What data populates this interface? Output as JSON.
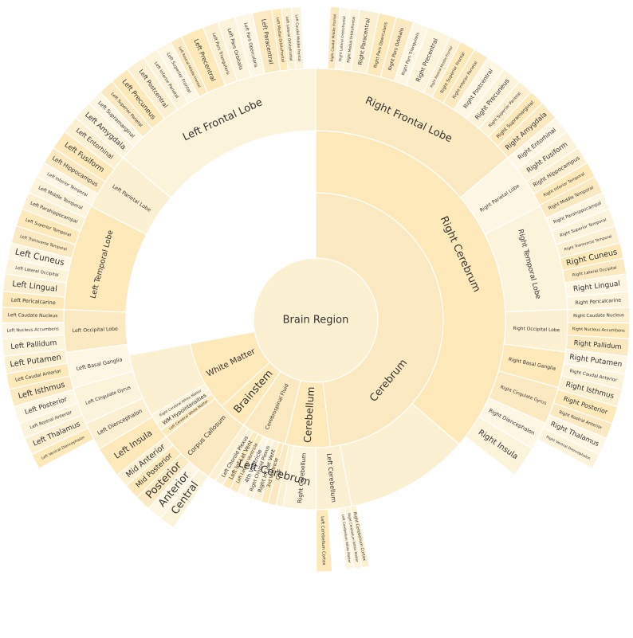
{
  "chart_data": {
    "type": "sunburst",
    "root": "Brain Region",
    "colors": [
      "#fbf0d2",
      "#fbeac1",
      "#fcf3db",
      "#fde9b9",
      "#fdf6e3"
    ],
    "nodes": [
      {
        "label": "Cerebrum",
        "level": 1,
        "start": 0,
        "end": 0.7205
      },
      {
        "label": "Left Cerebrum",
        "level": 2,
        "start": 0.3635,
        "end": 0.7205
      },
      {
        "label": "Right Cerebrum",
        "level": 2,
        "start": 0,
        "end": 0.3635
      },
      {
        "label": "Left Frontal Lobe",
        "level": 3,
        "start": 0.8617,
        "end": 1.0
      },
      {
        "label": "Left Parietal Lobe",
        "level": 3,
        "start": 0.8247,
        "end": 0.8617
      },
      {
        "label": "Left Temporal Lobe",
        "level": 3,
        "start": 0.7567,
        "end": 0.8247
      },
      {
        "label": "Left Occipital Lobe",
        "level": 3,
        "start": 0.7296,
        "end": 0.7567
      },
      {
        "label": "Left Basal Ganglia",
        "level": 3,
        "start": 0.7066,
        "end": 0.7296
      },
      {
        "label": "Left Cingulate Gyrus",
        "level": 3,
        "start": 0.6826,
        "end": 0.7066
      },
      {
        "label": "Left Diencephalon",
        "level": 3,
        "start": 0.6646,
        "end": 0.6826
      },
      {
        "label": "Left Insula",
        "level": 3,
        "start": 0.6446,
        "end": 0.6646
      },
      {
        "label": "Right Frontal Lobe",
        "level": 3,
        "start": 0,
        "end": 0.1381
      },
      {
        "label": "Right Parietal Lobe",
        "level": 3,
        "start": 0.1381,
        "end": 0.1751
      },
      {
        "label": "Right Temporal Lobe",
        "level": 3,
        "start": 0.1751,
        "end": 0.2431
      },
      {
        "label": "Right Occipital Lobe",
        "level": 3,
        "start": 0.2431,
        "end": 0.2702
      },
      {
        "label": "Right Basal Ganglia",
        "level": 3,
        "start": 0.2702,
        "end": 0.2932
      },
      {
        "label": "Right Cingulate Gyrus",
        "level": 3,
        "start": 0.2932,
        "end": 0.3172
      },
      {
        "label": "Right Diencephalon",
        "level": 3,
        "start": 0.3172,
        "end": 0.3352
      },
      {
        "label": "Right Insula",
        "level": 3,
        "start": 0.3352,
        "end": 0.3552
      },
      {
        "label": "White Matter",
        "level": 1,
        "start": 0.6316,
        "end": 0.7205
      },
      {
        "label": "Right Cerebral White Matter",
        "level": 2,
        "start": 0.6586,
        "end": 0.6666
      },
      {
        "label": "WM Hypointensities",
        "level": 2,
        "start": 0.6516,
        "end": 0.6586
      },
      {
        "label": "Left Cerebral White Matter",
        "level": 2,
        "start": 0.6446,
        "end": 0.6516
      },
      {
        "label": "Corpus Callosum",
        "level": 2,
        "start": 0.5956,
        "end": 0.6446
      },
      {
        "label": "Mid Anterior",
        "level": 3,
        "start": 0.6356,
        "end": 0.6446
      },
      {
        "label": "Mid Posterior",
        "level": 3,
        "start": 0.6256,
        "end": 0.6356
      },
      {
        "label": "Posterior",
        "level": 3,
        "start": 0.6156,
        "end": 0.6256
      },
      {
        "label": "Anterior",
        "level": 3,
        "start": 0.6056,
        "end": 0.6156
      },
      {
        "label": "Central",
        "level": 3,
        "start": 0.5956,
        "end": 0.6056
      },
      {
        "label": "Brainstem",
        "level": 1,
        "start": 0.5956,
        "end": 0.6316
      },
      {
        "label": "Cerebrospinal Fluid",
        "level": 1,
        "start": 0.5386,
        "end": 0.5956
      },
      {
        "label": "Left Choroid Plexus",
        "level": 2,
        "start": 0.5816,
        "end": 0.5886
      },
      {
        "label": "Left Inf Lat Vent",
        "level": 2,
        "start": 0.5746,
        "end": 0.5816
      },
      {
        "label": "Left Lateral Ventricle",
        "level": 2,
        "start": 0.5676,
        "end": 0.5746
      },
      {
        "label": "4th Ventricle",
        "level": 2,
        "start": 0.5606,
        "end": 0.5676
      },
      {
        "label": "Right Choroid Plexus",
        "level": 2,
        "start": 0.5536,
        "end": 0.5606
      },
      {
        "label": "Right Inf Lat Vent",
        "level": 2,
        "start": 0.5466,
        "end": 0.5536
      },
      {
        "label": "3rd Ventricle",
        "level": 2,
        "start": 0.5406,
        "end": 0.5466
      },
      {
        "label": "CSF",
        "level": 2,
        "start": 0.5336,
        "end": 0.5406
      },
      {
        "label": "Cerebellum",
        "level": 1,
        "start": 0.4816,
        "end": 0.5386
      },
      {
        "label": "Right Cerebellum",
        "level": 2,
        "start": 0.4996,
        "end": 0.5276
      },
      {
        "label": "Left Cerebellum",
        "level": 2,
        "start": 0.4696,
        "end": 0.4996
      },
      {
        "label": "Left Cerebellum White Matter",
        "level": 3,
        "start": 0.4756,
        "end": 0.4806
      },
      {
        "label": "Right Cerebellum White Matter",
        "level": 3,
        "start": 0.4706,
        "end": 0.4756
      },
      {
        "label": "Right Cerebellum Cortex",
        "level": 3,
        "start": 0.4656,
        "end": 0.4706
      },
      {
        "label": "Left Cerebellum Cortex",
        "level": 3,
        "start": 0.4896,
        "end": 0.4996
      },
      {
        "label": "Left Caudal Middle Frontal",
        "level": 4,
        "start": 0.9876,
        "end": 0.9926
      },
      {
        "label": "Left Lateral Orbitofrontal",
        "level": 4,
        "start": 0.9826,
        "end": 0.9876
      },
      {
        "label": "Left Medial Orbitofrontal",
        "level": 4,
        "start": 0.9776,
        "end": 0.9826
      },
      {
        "label": "Left Paracentral",
        "level": 4,
        "start": 0.9676,
        "end": 0.9776
      },
      {
        "label": "Left Pars Opercularis",
        "level": 4,
        "start": 0.9586,
        "end": 0.9676
      },
      {
        "label": "Left Pars Orbitalis",
        "level": 4,
        "start": 0.9496,
        "end": 0.9586
      },
      {
        "label": "Left Pars Triangularis",
        "level": 4,
        "start": 0.9416,
        "end": 0.9496
      },
      {
        "label": "Left Precentral",
        "level": 4,
        "start": 0.9296,
        "end": 0.9416
      },
      {
        "label": "Left Rostral Middle Frontal",
        "level": 4,
        "start": 0.9236,
        "end": 0.9296
      },
      {
        "label": "Left Superior Frontal",
        "level": 4,
        "start": 0.9156,
        "end": 0.9236
      },
      {
        "label": "Left Inferior Parietal",
        "level": 4,
        "start": 0.9076,
        "end": 0.9156
      },
      {
        "label": "Left Postcentral",
        "level": 4,
        "start": 0.8976,
        "end": 0.9076
      },
      {
        "label": "Left Precuneus",
        "level": 4,
        "start": 0.8876,
        "end": 0.8976
      },
      {
        "label": "Left Superior Parietal",
        "level": 4,
        "start": 0.8796,
        "end": 0.8876
      },
      {
        "label": "Left Supramarginal",
        "level": 4,
        "start": 0.8716,
        "end": 0.8796
      },
      {
        "label": "Left Amygdala",
        "level": 4,
        "start": 0.8616,
        "end": 0.8716
      },
      {
        "label": "Left Entorhinal",
        "level": 4,
        "start": 0.8526,
        "end": 0.8616
      },
      {
        "label": "Left Fusiform",
        "level": 4,
        "start": 0.8426,
        "end": 0.8526
      },
      {
        "label": "Left Hippocampus",
        "level": 4,
        "start": 0.8336,
        "end": 0.8426
      },
      {
        "label": "Left Inferior Temporal",
        "level": 4,
        "start": 0.8256,
        "end": 0.8336
      },
      {
        "label": "Left Middle Temporal",
        "level": 4,
        "start": 0.8166,
        "end": 0.8256
      },
      {
        "label": "Left Parahippocampal",
        "level": 4,
        "start": 0.8076,
        "end": 0.8166
      },
      {
        "label": "Left Superior Temporal",
        "level": 4,
        "start": 0.7986,
        "end": 0.8076
      },
      {
        "label": "Left Transverse Temporal",
        "level": 4,
        "start": 0.7896,
        "end": 0.7986
      },
      {
        "label": "Left Cuneus",
        "level": 4,
        "start": 0.7816,
        "end": 0.7896
      },
      {
        "label": "Left Lateral Occipital",
        "level": 4,
        "start": 0.7736,
        "end": 0.7816
      },
      {
        "label": "Left Lingual",
        "level": 4,
        "start": 0.7646,
        "end": 0.7736
      },
      {
        "label": "Left Pericalcarine",
        "level": 4,
        "start": 0.7566,
        "end": 0.7646
      },
      {
        "label": "Left Caudate Nucleus",
        "level": 4,
        "start": 0.7486,
        "end": 0.7566
      },
      {
        "label": "Left Nucleus Accumbens",
        "level": 4,
        "start": 0.7406,
        "end": 0.7486
      },
      {
        "label": "Left Pallidum",
        "level": 4,
        "start": 0.7316,
        "end": 0.7406
      },
      {
        "label": "Left Putamen",
        "level": 4,
        "start": 0.7226,
        "end": 0.7316
      },
      {
        "label": "Left Caudal Anterior",
        "level": 4,
        "start": 0.7146,
        "end": 0.7226
      },
      {
        "label": "Left Isthmus",
        "level": 4,
        "start": 0.7056,
        "end": 0.7146
      },
      {
        "label": "Left Posterior",
        "level": 4,
        "start": 0.6966,
        "end": 0.7056
      },
      {
        "label": "Left Rostral Anterior",
        "level": 4,
        "start": 0.6886,
        "end": 0.6966
      },
      {
        "label": "Left Thalamus",
        "level": 4,
        "start": 0.6796,
        "end": 0.6886
      },
      {
        "label": "Left Ventral Diencephalon",
        "level": 4,
        "start": 0.6716,
        "end": 0.6796
      },
      {
        "label": "Right Caudal Middle Frontal",
        "level": 4,
        "start": 0.0074,
        "end": 0.0124
      },
      {
        "label": "Right Lateral Orbitofrontal",
        "level": 4,
        "start": 0.0124,
        "end": 0.0174
      },
      {
        "label": "Right Medial Orbitofrontal",
        "level": 4,
        "start": 0.0174,
        "end": 0.0224
      },
      {
        "label": "Right Paracentral",
        "level": 4,
        "start": 0.0224,
        "end": 0.0324
      },
      {
        "label": "Right Pars Opercularis",
        "level": 4,
        "start": 0.0324,
        "end": 0.0414
      },
      {
        "label": "Right Pars Orbitalis",
        "level": 4,
        "start": 0.0414,
        "end": 0.0504
      },
      {
        "label": "Right Pars Triangularis",
        "level": 4,
        "start": 0.0504,
        "end": 0.0584
      },
      {
        "label": "Right Precentral",
        "level": 4,
        "start": 0.0584,
        "end": 0.0704
      },
      {
        "label": "Right Rostral Middle Frontal",
        "level": 4,
        "start": 0.0704,
        "end": 0.0764
      },
      {
        "label": "Right Superior Frontal",
        "level": 4,
        "start": 0.0764,
        "end": 0.0844
      },
      {
        "label": "Right Inferior Parietal",
        "level": 4,
        "start": 0.0844,
        "end": 0.0924
      },
      {
        "label": "Right Postcentral",
        "level": 4,
        "start": 0.0924,
        "end": 0.1024
      },
      {
        "label": "Right Precuneus",
        "level": 4,
        "start": 0.1024,
        "end": 0.1124
      },
      {
        "label": "Right Superior Parietal",
        "level": 4,
        "start": 0.1124,
        "end": 0.1204
      },
      {
        "label": "Right Supramarginal",
        "level": 4,
        "start": 0.1204,
        "end": 0.1284
      },
      {
        "label": "Right Amygdala",
        "level": 4,
        "start": 0.1284,
        "end": 0.1384
      },
      {
        "label": "Right Entorhinal",
        "level": 4,
        "start": 0.1384,
        "end": 0.1474
      },
      {
        "label": "Right Fusiform",
        "level": 4,
        "start": 0.1474,
        "end": 0.1574
      },
      {
        "label": "Right Hippocampus",
        "level": 4,
        "start": 0.1574,
        "end": 0.1664
      },
      {
        "label": "Right Inferior Temporal",
        "level": 4,
        "start": 0.1664,
        "end": 0.1744
      },
      {
        "label": "Right Middle Temporal",
        "level": 4,
        "start": 0.1744,
        "end": 0.1834
      },
      {
        "label": "Right Parahippocampal",
        "level": 4,
        "start": 0.1834,
        "end": 0.1924
      },
      {
        "label": "Right Superior Temporal",
        "level": 4,
        "start": 0.1924,
        "end": 0.2014
      },
      {
        "label": "Right Transverse Temporal",
        "level": 4,
        "start": 0.2014,
        "end": 0.2104
      },
      {
        "label": "Right Cuneus",
        "level": 4,
        "start": 0.2104,
        "end": 0.2184
      },
      {
        "label": "Right Lateral Occipital",
        "level": 4,
        "start": 0.2184,
        "end": 0.2264
      },
      {
        "label": "Right Lingual",
        "level": 4,
        "start": 0.2264,
        "end": 0.2354
      },
      {
        "label": "Right Pericalcarine",
        "level": 4,
        "start": 0.2354,
        "end": 0.2434
      },
      {
        "label": "Right Caudate Nucleus",
        "level": 4,
        "start": 0.2434,
        "end": 0.2514
      },
      {
        "label": "Right Nucleus Accumbens",
        "level": 4,
        "start": 0.2514,
        "end": 0.2594
      },
      {
        "label": "Right Pallidum",
        "level": 4,
        "start": 0.2594,
        "end": 0.2684
      },
      {
        "label": "Right Putamen",
        "level": 4,
        "start": 0.2684,
        "end": 0.2774
      },
      {
        "label": "Right Caudal Anterior",
        "level": 4,
        "start": 0.2774,
        "end": 0.2854
      },
      {
        "label": "Right Isthmus",
        "level": 4,
        "start": 0.2854,
        "end": 0.2944
      },
      {
        "label": "Right Posterior",
        "level": 4,
        "start": 0.2944,
        "end": 0.3034
      },
      {
        "label": "Right Rostral Anterior",
        "level": 4,
        "start": 0.3034,
        "end": 0.3114
      },
      {
        "label": "Right Thalamus",
        "level": 4,
        "start": 0.3114,
        "end": 0.3204
      },
      {
        "label": "Right Ventral Diencephalon",
        "level": 4,
        "start": 0.3204,
        "end": 0.3284
      }
    ]
  }
}
